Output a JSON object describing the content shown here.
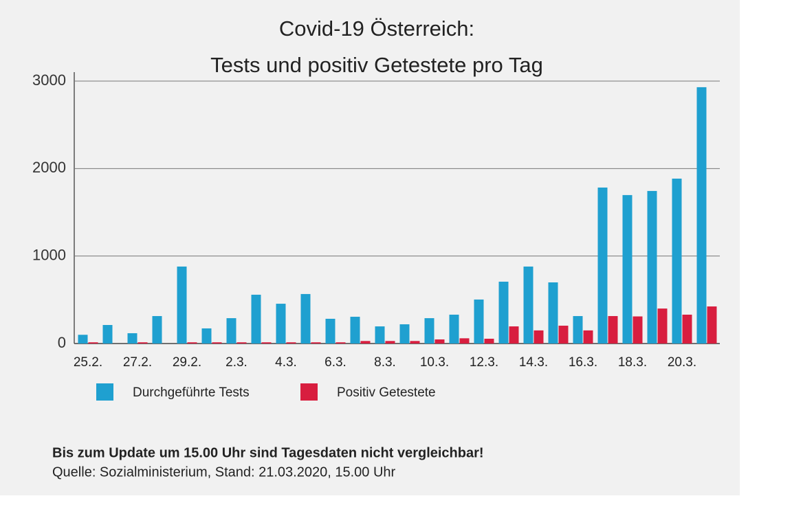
{
  "chart_data": {
    "type": "bar",
    "title": "Covid-19 Österreich:",
    "subtitle": "Tests und positiv Getestete pro Tag",
    "categories": [
      "25.2.",
      null,
      "27.2.",
      null,
      "29.2.",
      null,
      "2.3.",
      null,
      "4.3.",
      null,
      "6.3.",
      null,
      "8.3.",
      null,
      "10.3.",
      null,
      "12.3.",
      null,
      "14.3.",
      null,
      "16.3.",
      null,
      "18.3.",
      null,
      "20.3.",
      null
    ],
    "series": [
      {
        "name": "Durchgeführte Tests",
        "color": "#1fa0d0",
        "values": [
          100,
          212,
          118,
          314,
          880,
          173,
          290,
          558,
          455,
          566,
          283,
          306,
          196,
          220,
          290,
          330,
          503,
          707,
          880,
          699,
          314,
          1783,
          1697,
          1744,
          1885,
          2930
        ]
      },
      {
        "name": "Positiv Getestete",
        "color": "#d81e3f",
        "values": [
          14,
          0,
          14,
          0,
          14,
          14,
          14,
          14,
          14,
          14,
          14,
          29,
          29,
          29,
          47,
          60,
          55,
          196,
          150,
          204,
          150,
          314,
          310,
          400,
          330,
          424
        ]
      }
    ],
    "ylim": [
      0,
      3000
    ],
    "yticks": [
      0,
      1000,
      2000,
      3000
    ],
    "grid": true,
    "note": "Bis zum Update um 15.00 Uhr sind Tagesdaten nicht vergleichbar!",
    "source": "Quelle: Sozialministerium, Stand: 21.03.2020, 15.00 Uhr"
  }
}
